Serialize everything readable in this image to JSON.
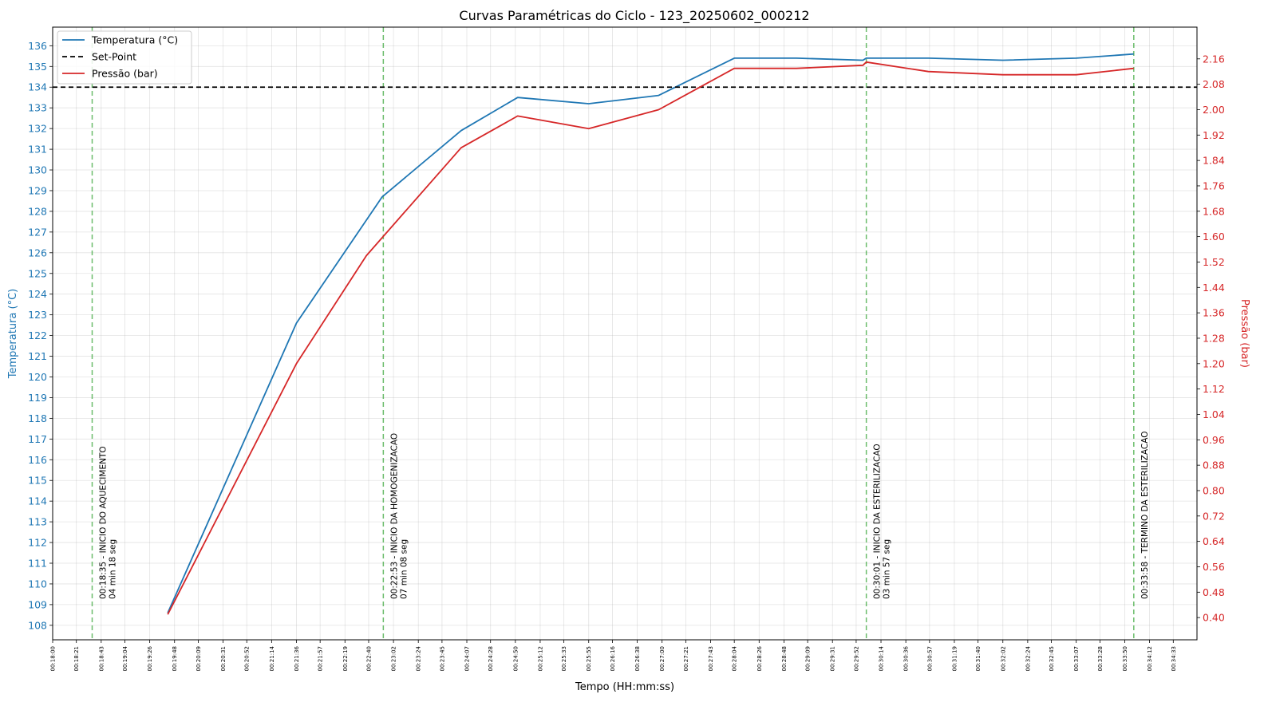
{
  "chart_data": {
    "type": "line",
    "title": "Curvas Paramétricas do Ciclo - 123_20250602_000212",
    "xlabel": "Tempo (HH:mm:ss)",
    "ylabel_left": "Temperatura (°C)",
    "ylabel_right": "Pressão (bar)",
    "x_range_seconds": [
      1080,
      2094
    ],
    "ylim_left": [
      107.3,
      136.9
    ],
    "ylim_right": [
      0.33,
      2.26
    ],
    "grid": true,
    "legend_placement": "top-left",
    "x_tick_labels": [
      "00:18:00",
      "00:18:21",
      "00:18:43",
      "00:19:04",
      "00:19:26",
      "00:19:48",
      "00:20:09",
      "00:20:31",
      "00:20:52",
      "00:21:14",
      "00:21:36",
      "00:21:57",
      "00:22:19",
      "00:22:40",
      "00:23:02",
      "00:23:24",
      "00:23:45",
      "00:24:07",
      "00:24:28",
      "00:24:50",
      "00:25:12",
      "00:25:33",
      "00:25:55",
      "00:26:16",
      "00:26:38",
      "00:27:00",
      "00:27:21",
      "00:27:43",
      "00:28:04",
      "00:28:26",
      "00:28:48",
      "00:29:09",
      "00:29:31",
      "00:29:52",
      "00:30:14",
      "00:30:36",
      "00:30:57",
      "00:31:19",
      "00:31:40",
      "00:32:02",
      "00:32:24",
      "00:32:45",
      "00:33:07",
      "00:33:28",
      "00:33:50",
      "00:34:12",
      "00:34:33"
    ],
    "y_left_ticks": [
      108,
      109,
      110,
      111,
      112,
      113,
      114,
      115,
      116,
      117,
      118,
      119,
      120,
      121,
      122,
      123,
      124,
      125,
      126,
      127,
      128,
      129,
      130,
      131,
      132,
      133,
      134,
      135,
      136
    ],
    "y_right_ticks": [
      "0.40",
      "0.48",
      "0.56",
      "0.64",
      "0.72",
      "0.80",
      "0.88",
      "0.96",
      "1.04",
      "1.12",
      "1.20",
      "1.28",
      "1.36",
      "1.44",
      "1.52",
      "1.60",
      "1.68",
      "1.76",
      "1.84",
      "1.92",
      "2.00",
      "2.08",
      "2.16"
    ],
    "series": [
      {
        "name": "Temperatura (°C)",
        "axis": "left",
        "color": "#1f77b4",
        "points": [
          [
            "00:19:42",
            108.6
          ],
          [
            "00:21:36",
            122.6
          ],
          [
            "00:22:52",
            128.7
          ],
          [
            "00:24:02",
            131.9
          ],
          [
            "00:24:52",
            133.5
          ],
          [
            "00:25:55",
            133.2
          ],
          [
            "00:26:57",
            133.6
          ],
          [
            "00:28:04",
            135.4
          ],
          [
            "00:28:59",
            135.4
          ],
          [
            "00:29:58",
            135.3
          ],
          [
            "00:30:01",
            135.4
          ],
          [
            "00:30:56",
            135.4
          ],
          [
            "00:32:02",
            135.3
          ],
          [
            "00:33:07",
            135.4
          ],
          [
            "00:33:58",
            135.6
          ]
        ]
      },
      {
        "name": "Set-Point",
        "axis": "left",
        "color": "#000000",
        "dashed": true,
        "constant": 134
      },
      {
        "name": "Pressão (bar)",
        "axis": "right",
        "color": "#d62728",
        "points": [
          [
            "00:19:42",
            0.41
          ],
          [
            "00:21:36",
            1.2
          ],
          [
            "00:22:38",
            1.54
          ],
          [
            "00:24:02",
            1.88
          ],
          [
            "00:24:52",
            1.98
          ],
          [
            "00:25:55",
            1.94
          ],
          [
            "00:26:57",
            2.0
          ],
          [
            "00:28:04",
            2.13
          ],
          [
            "00:28:59",
            2.13
          ],
          [
            "00:29:58",
            2.14
          ],
          [
            "00:30:01",
            2.15
          ],
          [
            "00:30:56",
            2.12
          ],
          [
            "00:32:02",
            2.11
          ],
          [
            "00:33:07",
            2.11
          ],
          [
            "00:33:58",
            2.13
          ]
        ]
      }
    ],
    "events": [
      {
        "time": "00:18:35",
        "label": "00:18:35 - INICIO DO AQUECIMENTO",
        "duration": "04 min 18 seg",
        "color": "#2ca02c"
      },
      {
        "time": "00:22:53",
        "label": "00:22:53 - INICIO DA HOMOGENIZACAO",
        "duration": "07 min 08 seg",
        "color": "#2ca02c"
      },
      {
        "time": "00:30:01",
        "label": "00:30:01 - INICIO DA ESTERILIZACAO",
        "duration": "03 min 57 seg",
        "color": "#2ca02c"
      },
      {
        "time": "00:33:58",
        "label": "00:33:58 - TERMINO DA ESTERILIZACAO",
        "duration": "",
        "color": "#2ca02c"
      }
    ]
  }
}
